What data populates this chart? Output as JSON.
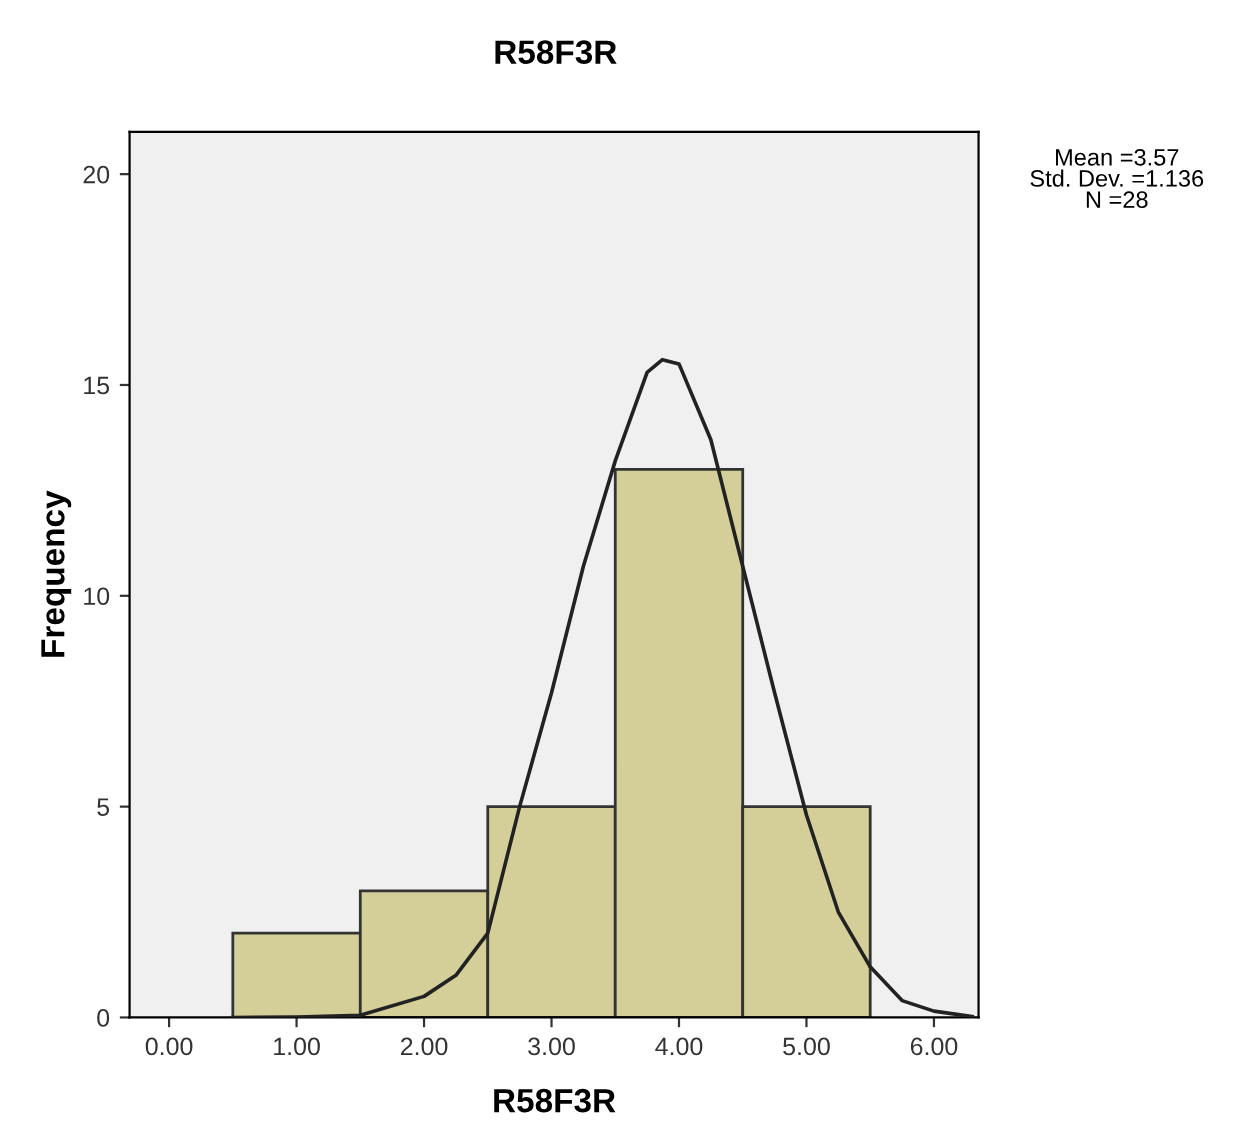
{
  "chart_data": {
    "type": "histogram",
    "title": "R58F3R",
    "xlabel": "R58F3R",
    "ylabel": "Frequency",
    "bins": [
      0.5,
      1.5,
      2.5,
      3.5,
      4.5,
      5.5
    ],
    "values": [
      2,
      3,
      5,
      13,
      5
    ],
    "color": "#d4cf98",
    "series": [
      {
        "type": "line",
        "color": "#222222",
        "x": [
          0.5,
          1.0,
          1.5,
          2.0,
          2.25,
          2.5,
          2.75,
          3.0,
          3.25,
          3.5,
          3.75,
          3.87,
          4.0,
          4.25,
          4.5,
          4.75,
          5.0,
          5.25,
          5.5,
          5.75,
          6.0,
          6.3
        ],
        "values": [
          0,
          0.01,
          0.05,
          0.5,
          1.0,
          2.0,
          5.0,
          7.7,
          10.7,
          13.2,
          15.3,
          15.6,
          15.5,
          13.7,
          10.7,
          7.7,
          4.8,
          2.5,
          1.2,
          0.4,
          0.15,
          0.02
        ]
      }
    ],
    "xlim": [
      -0.31,
      6.35
    ],
    "ylim": [
      0,
      21
    ],
    "xticks": [
      {
        "value": 0,
        "label": "0.00"
      },
      {
        "value": 1,
        "label": "1.00"
      },
      {
        "value": 2,
        "label": "2.00"
      },
      {
        "value": 3,
        "label": "3.00"
      },
      {
        "value": 4,
        "label": "4.00"
      },
      {
        "value": 5,
        "label": "5.00"
      },
      {
        "value": 6,
        "label": "6.00"
      }
    ],
    "yticks": [
      0,
      5,
      10,
      15,
      20
    ],
    "annotations": [
      "Mean =3.57\nStd. Dev. =1.136\nN =28"
    ],
    "grid": false
  }
}
